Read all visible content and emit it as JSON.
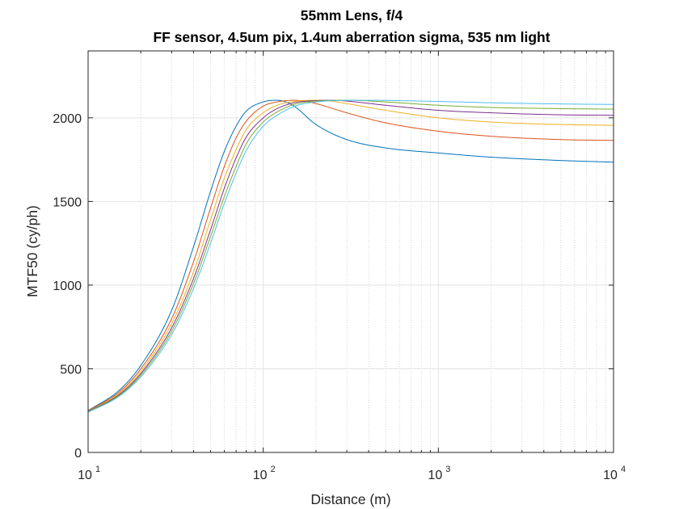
{
  "chart_data": {
    "type": "line",
    "title": "55mm Lens, f/4",
    "subtitle": "FF sensor, 4.5um pix, 1.4um aberration sigma, 535 nm light",
    "xlabel": "Distance (m)",
    "ylabel": "MTF50 (cy/ph)",
    "x_scale": "log",
    "xlim": [
      10,
      10000
    ],
    "ylim": [
      0,
      2400
    ],
    "grid": true,
    "x_ticks": [
      {
        "base": "10",
        "exp": "1",
        "value": 10
      },
      {
        "base": "10",
        "exp": "2",
        "value": 100
      },
      {
        "base": "10",
        "exp": "3",
        "value": 1000
      },
      {
        "base": "10",
        "exp": "4",
        "value": 10000
      }
    ],
    "y_ticks": [
      {
        "label": "0",
        "value": 0
      },
      {
        "label": "500",
        "value": 500
      },
      {
        "label": "1000",
        "value": 1000
      },
      {
        "label": "1500",
        "value": 1500
      },
      {
        "label": "2000",
        "value": 2000
      }
    ],
    "series": [
      {
        "color": "#0072BD",
        "x": [
          10,
          15,
          20,
          30,
          40,
          50,
          60,
          70,
          80,
          100,
          120,
          130,
          150,
          200,
          300,
          500,
          1000,
          2000,
          5000,
          10000
        ],
        "y": [
          250,
          370,
          520,
          850,
          1230,
          1560,
          1800,
          1950,
          2040,
          2095,
          2105,
          2100,
          2070,
          1960,
          1870,
          1820,
          1790,
          1765,
          1745,
          1735
        ]
      },
      {
        "color": "#D95319",
        "x": [
          10,
          15,
          20,
          30,
          40,
          50,
          60,
          70,
          80,
          100,
          120,
          150,
          170,
          200,
          300,
          500,
          1000,
          2000,
          5000,
          10000
        ],
        "y": [
          248,
          360,
          500,
          800,
          1140,
          1460,
          1710,
          1880,
          1980,
          2070,
          2095,
          2105,
          2100,
          2085,
          2030,
          1970,
          1920,
          1890,
          1870,
          1865
        ]
      },
      {
        "color": "#EDB120",
        "x": [
          10,
          15,
          20,
          30,
          40,
          50,
          60,
          70,
          80,
          100,
          120,
          150,
          200,
          230,
          300,
          500,
          1000,
          2000,
          5000,
          10000
        ],
        "y": [
          246,
          352,
          485,
          770,
          1080,
          1390,
          1640,
          1810,
          1930,
          2030,
          2075,
          2098,
          2105,
          2103,
          2085,
          2045,
          2000,
          1975,
          1960,
          1955
        ]
      },
      {
        "color": "#7E2F8E",
        "x": [
          10,
          15,
          20,
          30,
          40,
          50,
          60,
          70,
          80,
          100,
          120,
          150,
          200,
          250,
          300,
          500,
          1000,
          2000,
          5000,
          10000
        ],
        "y": [
          244,
          345,
          472,
          745,
          1040,
          1330,
          1580,
          1760,
          1885,
          2000,
          2055,
          2090,
          2103,
          2105,
          2100,
          2075,
          2045,
          2030,
          2018,
          2015
        ]
      },
      {
        "color": "#77AC30",
        "x": [
          10,
          15,
          20,
          30,
          40,
          50,
          60,
          70,
          80,
          100,
          120,
          150,
          200,
          300,
          350,
          500,
          1000,
          2000,
          5000,
          10000
        ],
        "y": [
          242,
          340,
          462,
          725,
          1010,
          1290,
          1530,
          1710,
          1845,
          1975,
          2035,
          2080,
          2100,
          2105,
          2104,
          2095,
          2075,
          2062,
          2055,
          2052
        ]
      },
      {
        "color": "#4DBEEE",
        "x": [
          10,
          15,
          20,
          30,
          40,
          50,
          60,
          70,
          80,
          100,
          120,
          150,
          200,
          300,
          400,
          500,
          1000,
          2000,
          5000,
          10000
        ],
        "y": [
          240,
          335,
          452,
          705,
          980,
          1250,
          1490,
          1670,
          1805,
          1950,
          2015,
          2068,
          2095,
          2104,
          2105,
          2104,
          2098,
          2090,
          2083,
          2080
        ]
      }
    ]
  }
}
